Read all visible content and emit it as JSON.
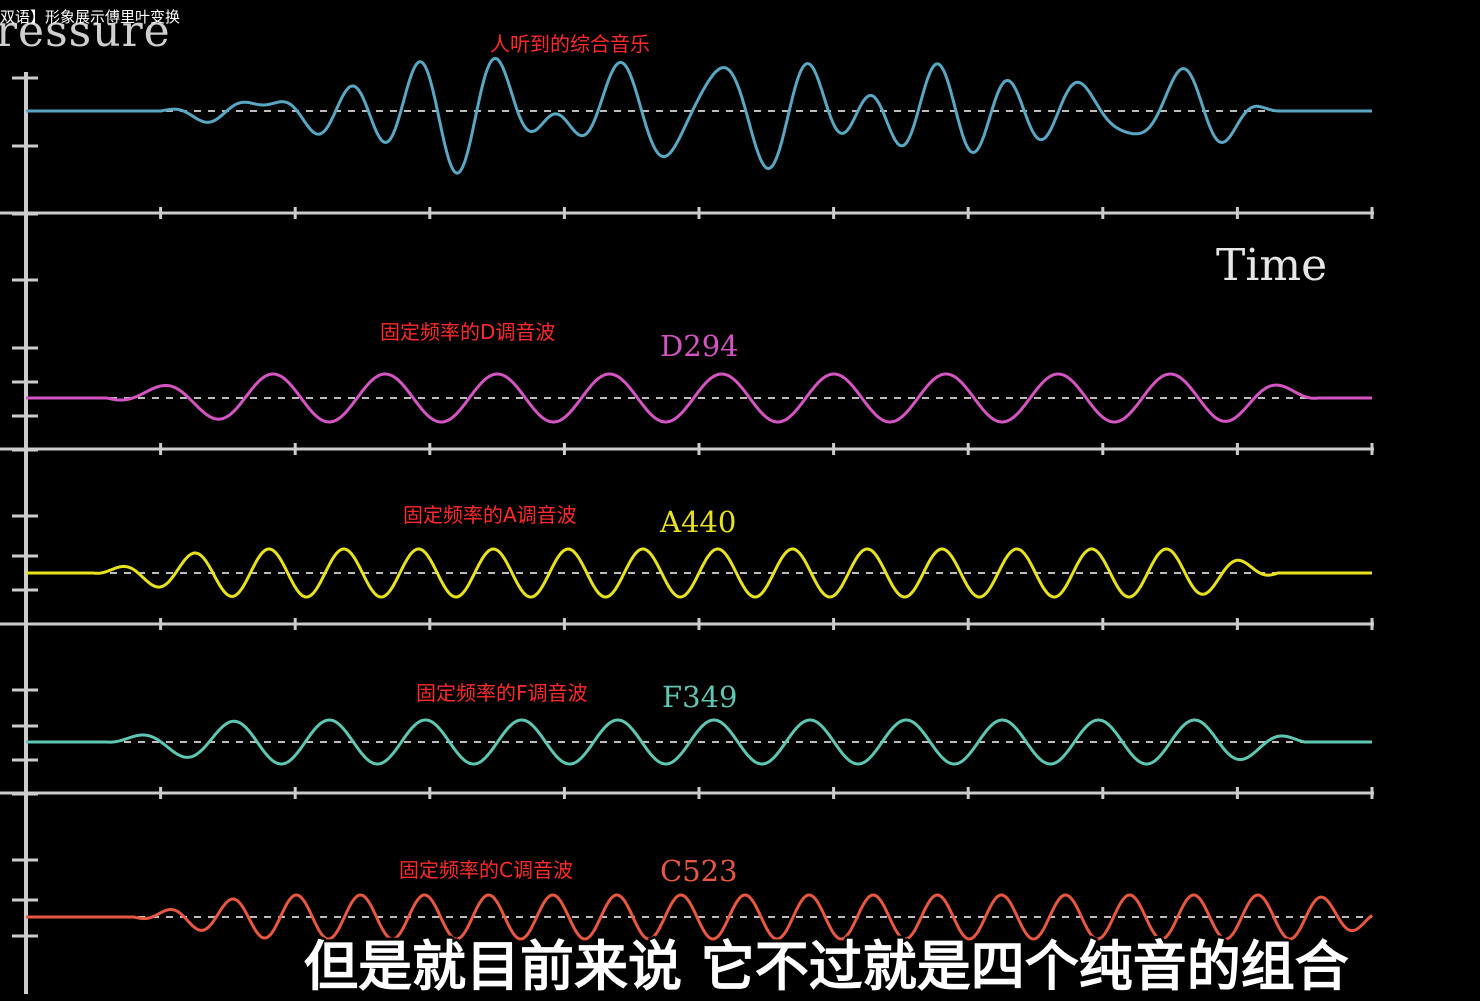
{
  "window": {
    "title": "双语】形象展示傅里叶变换"
  },
  "axes": {
    "ylabel": "ressure",
    "xlabel": "Time"
  },
  "annotations": {
    "mixed": "人听到的综合音乐",
    "d_wave": "固定频率的D调音波",
    "a_wave": "固定频率的A调音波",
    "f_wave": "固定频率的F调音波",
    "c_wave": "固定频率的C调音波"
  },
  "notes": {
    "d": "D294",
    "a": "A440",
    "f": "F349",
    "c": "C523"
  },
  "subtitle": "但是就目前来说 它不过就是四个纯音的组合",
  "colors": {
    "mixed": "#5aa7c4",
    "d": "#d455c2",
    "a": "#e8e21e",
    "f": "#5fc6b3",
    "c": "#e8573f",
    "annotation": "#ff2a2a",
    "axis": "#cccccc"
  },
  "chart_data": [
    {
      "type": "line",
      "title": "",
      "xlabel": "Time",
      "ylabel": "Pressure",
      "series": [
        {
          "name": "",
          "frequency_hz": null,
          "components": [
            "D294",
            "A440",
            "F349",
            "C523"
          ]
        }
      ]
    },
    {
      "type": "line",
      "series": [
        {
          "name": "D294",
          "frequency_hz": 294,
          "cycles_visible": 12
        }
      ]
    },
    {
      "type": "line",
      "series": [
        {
          "name": "A440",
          "frequency_hz": 440,
          "cycles_visible": 18
        }
      ]
    },
    {
      "type": "line",
      "series": [
        {
          "name": "F349",
          "frequency_hz": 349,
          "cycles_visible": 14
        }
      ]
    },
    {
      "type": "line",
      "series": [
        {
          "name": "C523",
          "frequency_hz": 523,
          "cycles_visible": 21
        }
      ]
    }
  ]
}
